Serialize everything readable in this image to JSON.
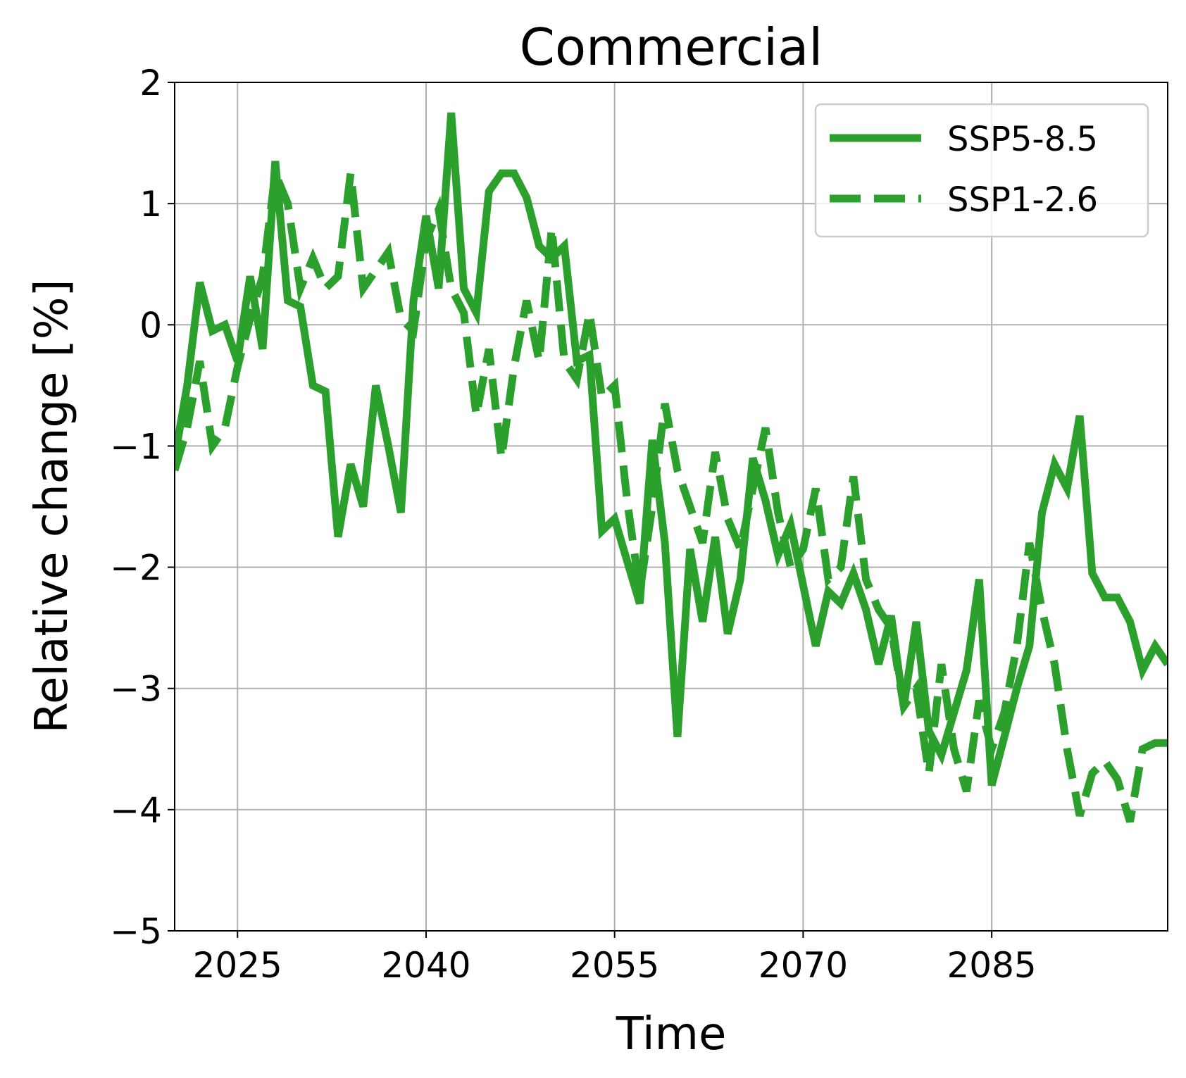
{
  "chart_data": {
    "type": "line",
    "title": "Commercial",
    "xlabel": "Time",
    "ylabel": "Relative change [%]",
    "xlim": [
      2020,
      2099
    ],
    "ylim": [
      -5,
      2
    ],
    "xticks": [
      2025,
      2040,
      2055,
      2070,
      2085
    ],
    "xtick_labels": [
      "2025",
      "2040",
      "2055",
      "2070",
      "2085"
    ],
    "yticks": [
      2,
      1,
      0,
      -1,
      -2,
      -3,
      -4,
      -5
    ],
    "ytick_labels": [
      "2",
      "1",
      "0",
      "−1",
      "−2",
      "−3",
      "−4",
      "−5"
    ],
    "grid": true,
    "legend_position": "top-right",
    "color": "#2ca02c",
    "series": [
      {
        "name": "SSP5-8.5",
        "style": "solid",
        "x": [
          2020,
          2021,
          2022,
          2023,
          2024,
          2025,
          2026,
          2027,
          2028,
          2029,
          2030,
          2031,
          2032,
          2033,
          2034,
          2035,
          2036,
          2037,
          2038,
          2039,
          2040,
          2041,
          2042,
          2043,
          2044,
          2045,
          2046,
          2047,
          2048,
          2049,
          2050,
          2051,
          2052,
          2053,
          2054,
          2055,
          2056,
          2057,
          2058,
          2059,
          2060,
          2061,
          2062,
          2063,
          2064,
          2065,
          2066,
          2067,
          2068,
          2069,
          2070,
          2071,
          2072,
          2073,
          2074,
          2075,
          2076,
          2077,
          2078,
          2079,
          2080,
          2081,
          2082,
          2083,
          2084,
          2085,
          2086,
          2087,
          2088,
          2089,
          2090,
          2091,
          2092,
          2093,
          2094,
          2095,
          2096,
          2097,
          2098,
          2099
        ],
        "y": [
          -1.1,
          -0.5,
          0.35,
          -0.05,
          0.0,
          -0.3,
          0.4,
          -0.2,
          1.35,
          0.2,
          0.15,
          -0.5,
          -0.55,
          -1.75,
          -1.15,
          -1.5,
          -0.5,
          -1.0,
          -1.55,
          0.2,
          0.9,
          0.3,
          1.75,
          0.3,
          0.1,
          1.1,
          1.25,
          1.25,
          1.05,
          0.65,
          0.55,
          0.65,
          -0.3,
          -0.25,
          -1.7,
          -1.6,
          -1.95,
          -2.3,
          -0.95,
          -1.8,
          -3.4,
          -1.85,
          -2.45,
          -1.75,
          -2.55,
          -2.1,
          -1.1,
          -1.45,
          -1.9,
          -1.65,
          -2.15,
          -2.65,
          -2.2,
          -2.3,
          -2.05,
          -2.35,
          -2.8,
          -2.4,
          -3.15,
          -2.45,
          -3.35,
          -3.55,
          -3.2,
          -2.85,
          -2.1,
          -3.8,
          -3.4,
          -3.0,
          -2.65,
          -1.55,
          -1.15,
          -1.35,
          -0.75,
          -2.05,
          -2.25,
          -2.25,
          -2.45,
          -2.85,
          -2.65,
          -2.8
        ]
      },
      {
        "name": "SSP1-2.6",
        "style": "dashed",
        "x": [
          2020,
          2021,
          2022,
          2023,
          2024,
          2025,
          2026,
          2027,
          2028,
          2029,
          2030,
          2031,
          2032,
          2033,
          2034,
          2035,
          2036,
          2037,
          2038,
          2039,
          2040,
          2041,
          2042,
          2043,
          2044,
          2045,
          2046,
          2047,
          2048,
          2049,
          2050,
          2051,
          2052,
          2053,
          2054,
          2055,
          2056,
          2057,
          2058,
          2059,
          2060,
          2061,
          2062,
          2063,
          2064,
          2065,
          2066,
          2067,
          2068,
          2069,
          2070,
          2071,
          2072,
          2073,
          2074,
          2075,
          2076,
          2077,
          2078,
          2079,
          2080,
          2081,
          2082,
          2083,
          2084,
          2085,
          2086,
          2087,
          2088,
          2089,
          2090,
          2091,
          2092,
          2093,
          2094,
          2095,
          2096,
          2097,
          2098,
          2099
        ],
        "y": [
          -1.2,
          -0.85,
          -0.3,
          -1.0,
          -0.85,
          -0.35,
          0.05,
          0.4,
          1.25,
          1.0,
          0.3,
          0.55,
          0.3,
          0.4,
          1.25,
          0.3,
          0.45,
          0.6,
          0.05,
          -0.05,
          0.7,
          0.95,
          0.3,
          0.1,
          -0.75,
          -0.2,
          -1.1,
          -0.35,
          0.2,
          -0.3,
          0.8,
          -0.3,
          -0.45,
          0.1,
          -0.6,
          -0.5,
          -1.45,
          -2.2,
          -1.5,
          -0.65,
          -1.2,
          -1.5,
          -1.8,
          -1.05,
          -1.6,
          -1.85,
          -1.35,
          -0.85,
          -1.55,
          -2.0,
          -1.85,
          -1.35,
          -2.1,
          -2.0,
          -1.25,
          -2.1,
          -2.35,
          -2.5,
          -3.15,
          -3.0,
          -3.7,
          -2.8,
          -3.5,
          -3.85,
          -3.1,
          -3.5,
          -3.2,
          -2.65,
          -1.8,
          -2.35,
          -2.8,
          -3.5,
          -4.05,
          -3.7,
          -3.6,
          -3.75,
          -4.1,
          -3.5,
          -3.45,
          -3.45
        ]
      }
    ]
  }
}
